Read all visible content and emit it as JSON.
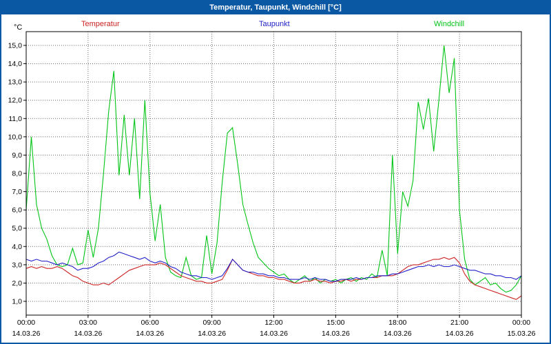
{
  "chart_data": {
    "type": "line",
    "title": "Temperatur, Taupunkt, Windchill [°C]",
    "ylabel": "°C",
    "xlabel": "",
    "ylim": [
      0.2,
      15.8
    ],
    "xlim_hours": [
      0,
      24
    ],
    "grid": "dotted",
    "legend_position": "top",
    "sample_interval_minutes": 15,
    "y_ticks": [
      {
        "value": 15,
        "label": "15,0"
      },
      {
        "value": 14,
        "label": "14,0"
      },
      {
        "value": 13,
        "label": "13,0"
      },
      {
        "value": 12,
        "label": "12,0"
      },
      {
        "value": 11,
        "label": "11,0"
      },
      {
        "value": 10,
        "label": "10,0"
      },
      {
        "value": 9,
        "label": "9,0"
      },
      {
        "value": 8,
        "label": "8,0"
      },
      {
        "value": 7,
        "label": "7,0"
      },
      {
        "value": 6,
        "label": "6,0"
      },
      {
        "value": 5,
        "label": "5,0"
      },
      {
        "value": 4,
        "label": "4,0"
      },
      {
        "value": 3,
        "label": "3,0"
      },
      {
        "value": 2,
        "label": "2,0"
      },
      {
        "value": 1,
        "label": "1,0"
      }
    ],
    "x_ticks": [
      {
        "hour": 0,
        "time": "00:00",
        "date": "14.03.26"
      },
      {
        "hour": 3,
        "time": "03:00",
        "date": "14.03.26"
      },
      {
        "hour": 6,
        "time": "06:00",
        "date": "14.03.26"
      },
      {
        "hour": 9,
        "time": "09:00",
        "date": "14.03.26"
      },
      {
        "hour": 12,
        "time": "12:00",
        "date": "14.03.26"
      },
      {
        "hour": 15,
        "time": "15:00",
        "date": "14.03.26"
      },
      {
        "hour": 18,
        "time": "18:00",
        "date": "14.03.26"
      },
      {
        "hour": 21,
        "time": "21:00",
        "date": "14.03.26"
      },
      {
        "hour": 24,
        "time": "00:00",
        "date": "15.03.26"
      }
    ],
    "series": [
      {
        "name": "Temperatur",
        "color": "#cc2222",
        "values": [
          2.8,
          2.9,
          2.8,
          2.9,
          2.8,
          2.8,
          2.9,
          2.8,
          2.6,
          2.4,
          2.3,
          2.1,
          2.0,
          1.9,
          1.9,
          2.0,
          1.9,
          2.1,
          2.3,
          2.5,
          2.7,
          2.8,
          2.9,
          3.0,
          3.0,
          3.0,
          3.1,
          3.0,
          2.8,
          2.6,
          2.4,
          2.3,
          2.2,
          2.1,
          2.1,
          2.0,
          2.0,
          2.1,
          2.2,
          2.7,
          3.3,
          3.0,
          2.7,
          2.6,
          2.5,
          2.4,
          2.4,
          2.3,
          2.3,
          2.2,
          2.2,
          2.1,
          2.0,
          2.0,
          2.1,
          2.1,
          2.2,
          2.1,
          2.1,
          2.0,
          2.1,
          2.1,
          2.2,
          2.1,
          2.2,
          2.2,
          2.3,
          2.3,
          2.3,
          2.4,
          2.4,
          2.4,
          2.5,
          2.7,
          2.9,
          3.0,
          3.0,
          3.1,
          3.2,
          3.3,
          3.3,
          3.4,
          3.3,
          3.4,
          3.1,
          2.5,
          2.1,
          1.9,
          1.8,
          1.7,
          1.6,
          1.5,
          1.4,
          1.3,
          1.2,
          1.1,
          1.3
        ]
      },
      {
        "name": "Taupunkt",
        "color": "#1f1fc8",
        "values": [
          3.3,
          3.2,
          3.3,
          3.2,
          3.2,
          3.1,
          3.0,
          3.1,
          3.0,
          2.9,
          2.7,
          2.8,
          2.8,
          2.9,
          3.1,
          3.2,
          3.4,
          3.5,
          3.7,
          3.6,
          3.5,
          3.4,
          3.3,
          3.4,
          3.2,
          3.1,
          3.2,
          3.1,
          2.9,
          2.8,
          2.6,
          2.5,
          2.4,
          2.4,
          2.3,
          2.3,
          2.2,
          2.3,
          2.4,
          2.8,
          3.3,
          3.0,
          2.7,
          2.6,
          2.6,
          2.5,
          2.5,
          2.4,
          2.4,
          2.3,
          2.3,
          2.2,
          2.2,
          2.2,
          2.3,
          2.2,
          2.3,
          2.2,
          2.2,
          2.1,
          2.1,
          2.2,
          2.2,
          2.2,
          2.3,
          2.2,
          2.3,
          2.3,
          2.4,
          2.4,
          2.4,
          2.5,
          2.5,
          2.6,
          2.7,
          2.8,
          2.9,
          2.9,
          3.0,
          2.9,
          3.0,
          2.9,
          2.9,
          3.0,
          2.9,
          2.8,
          2.7,
          2.7,
          2.6,
          2.5,
          2.5,
          2.4,
          2.4,
          2.3,
          2.3,
          2.2,
          2.4
        ]
      },
      {
        "name": "Windchill",
        "color": "#00c414",
        "values": [
          6.0,
          10.0,
          6.3,
          5.0,
          4.4,
          3.5,
          3.0,
          2.9,
          3.0,
          3.9,
          3.0,
          3.1,
          4.9,
          3.4,
          5.0,
          8.0,
          11.4,
          13.6,
          7.9,
          11.2,
          7.9,
          11.0,
          6.6,
          12.0,
          6.9,
          4.3,
          6.3,
          3.4,
          2.6,
          2.4,
          2.3,
          3.4,
          2.4,
          2.2,
          2.3,
          4.6,
          2.5,
          4.2,
          7.5,
          10.2,
          10.5,
          8.5,
          6.3,
          5.2,
          4.2,
          3.4,
          3.1,
          2.8,
          2.6,
          2.4,
          2.5,
          2.2,
          2.0,
          2.2,
          2.4,
          2.1,
          2.3,
          2.0,
          2.2,
          2.1,
          2.2,
          2.0,
          2.2,
          2.3,
          2.1,
          2.3,
          2.2,
          2.5,
          2.3,
          3.8,
          2.4,
          9.0,
          3.6,
          7.0,
          6.2,
          7.6,
          11.9,
          10.4,
          12.1,
          9.2,
          12.0,
          15.0,
          12.4,
          14.3,
          6.0,
          3.3,
          2.2,
          1.9,
          2.1,
          2.3,
          1.9,
          2.0,
          1.7,
          1.5,
          1.6,
          1.9,
          2.4
        ]
      }
    ]
  }
}
